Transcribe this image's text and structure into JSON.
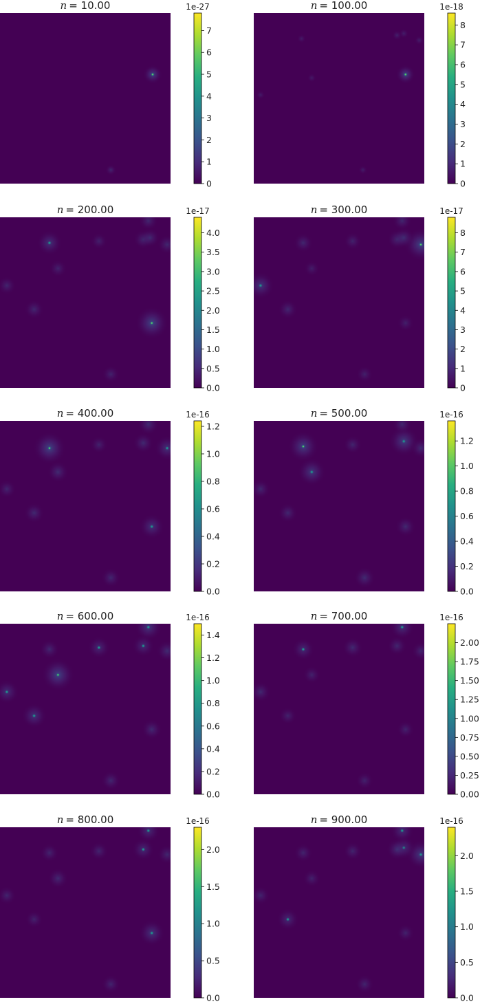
{
  "figure": {
    "colormap": "viridis",
    "colormap_stops": [
      "#440154",
      "#472c7a",
      "#3b528b",
      "#2c728e",
      "#21918c",
      "#28ae80",
      "#5ec962",
      "#addc30",
      "#fde725"
    ],
    "background": "#ffffff"
  },
  "chart_data": [
    {
      "type": "heatmap",
      "title_var": "n",
      "title_value": "= 10.00",
      "colorbar_exponent": "1e-27",
      "colorbar_ticks": [
        "0",
        "1",
        "2",
        "3",
        "4",
        "5",
        "6",
        "7"
      ],
      "colorbar_tick_values": [
        0,
        1,
        2,
        3,
        4,
        5,
        6,
        7
      ],
      "clim": [
        0,
        7.8
      ],
      "axes_ticks_visible": false,
      "sources": [
        {
          "x": 0.895,
          "y": 0.36,
          "intensity": 1.0
        },
        {
          "x": 0.65,
          "y": 0.92,
          "intensity": 0.25
        }
      ]
    },
    {
      "type": "heatmap",
      "title_var": "n",
      "title_value": "= 100.00",
      "colorbar_exponent": "1e-18",
      "colorbar_ticks": [
        "0",
        "1",
        "2",
        "3",
        "4",
        "5",
        "6",
        "7",
        "8"
      ],
      "colorbar_tick_values": [
        0,
        1,
        2,
        3,
        4,
        5,
        6,
        7,
        8
      ],
      "clim": [
        0,
        8.6
      ],
      "axes_ticks_visible": false,
      "sources": [
        {
          "x": 0.89,
          "y": 0.36,
          "intensity": 1.0
        },
        {
          "x": 0.84,
          "y": 0.13,
          "intensity": 0.15
        },
        {
          "x": 0.88,
          "y": 0.12,
          "intensity": 0.12
        },
        {
          "x": 0.97,
          "y": 0.16,
          "intensity": 0.1
        },
        {
          "x": 0.28,
          "y": 0.15,
          "intensity": 0.06
        },
        {
          "x": 0.34,
          "y": 0.38,
          "intensity": 0.05
        },
        {
          "x": 0.04,
          "y": 0.48,
          "intensity": 0.05
        },
        {
          "x": 0.64,
          "y": 0.92,
          "intensity": 0.06
        }
      ]
    },
    {
      "type": "heatmap",
      "title_var": "n",
      "title_value": "= 200.00",
      "colorbar_exponent": "1e-17",
      "colorbar_ticks": [
        "0.0",
        "0.5",
        "1.0",
        "1.5",
        "2.0",
        "2.5",
        "3.0",
        "3.5",
        "4.0"
      ],
      "colorbar_tick_values": [
        0,
        0.5,
        1,
        1.5,
        2,
        2.5,
        3,
        3.5,
        4
      ],
      "clim": [
        0,
        4.4
      ],
      "axes_ticks_visible": false,
      "sources": [
        {
          "x": 0.89,
          "y": 0.62,
          "intensity": 1.0
        },
        {
          "x": 0.29,
          "y": 0.15,
          "intensity": 0.6
        },
        {
          "x": 0.87,
          "y": 0.02,
          "intensity": 0.3
        },
        {
          "x": 0.84,
          "y": 0.13,
          "intensity": 0.3
        },
        {
          "x": 0.88,
          "y": 0.12,
          "intensity": 0.3
        },
        {
          "x": 0.98,
          "y": 0.16,
          "intensity": 0.3
        },
        {
          "x": 0.58,
          "y": 0.14,
          "intensity": 0.15
        },
        {
          "x": 0.34,
          "y": 0.3,
          "intensity": 0.2
        },
        {
          "x": 0.04,
          "y": 0.4,
          "intensity": 0.25
        },
        {
          "x": 0.2,
          "y": 0.54,
          "intensity": 0.3
        },
        {
          "x": 0.65,
          "y": 0.92,
          "intensity": 0.2
        }
      ]
    },
    {
      "type": "heatmap",
      "title_var": "n",
      "title_value": "= 300.00",
      "colorbar_exponent": "1e-17",
      "colorbar_ticks": [
        "0",
        "1",
        "2",
        "3",
        "4",
        "5",
        "6",
        "7",
        "8"
      ],
      "colorbar_tick_values": [
        0,
        1,
        2,
        3,
        4,
        5,
        6,
        7,
        8
      ],
      "clim": [
        0,
        8.8
      ],
      "axes_ticks_visible": false,
      "sources": [
        {
          "x": 0.98,
          "y": 0.16,
          "intensity": 1.0
        },
        {
          "x": 0.04,
          "y": 0.4,
          "intensity": 0.7
        },
        {
          "x": 0.87,
          "y": 0.02,
          "intensity": 0.3
        },
        {
          "x": 0.84,
          "y": 0.13,
          "intensity": 0.3
        },
        {
          "x": 0.88,
          "y": 0.12,
          "intensity": 0.4
        },
        {
          "x": 0.29,
          "y": 0.15,
          "intensity": 0.3
        },
        {
          "x": 0.58,
          "y": 0.14,
          "intensity": 0.2
        },
        {
          "x": 0.34,
          "y": 0.3,
          "intensity": 0.1
        },
        {
          "x": 0.2,
          "y": 0.54,
          "intensity": 0.3
        },
        {
          "x": 0.89,
          "y": 0.62,
          "intensity": 0.15
        },
        {
          "x": 0.65,
          "y": 0.92,
          "intensity": 0.15
        }
      ]
    },
    {
      "type": "heatmap",
      "title_var": "n",
      "title_value": "= 400.00",
      "colorbar_exponent": "1e-16",
      "colorbar_ticks": [
        "0.0",
        "0.2",
        "0.4",
        "0.6",
        "0.8",
        "1.0",
        "1.2"
      ],
      "colorbar_tick_values": [
        0,
        0.2,
        0.4,
        0.6,
        0.8,
        1.0,
        1.2
      ],
      "clim": [
        0,
        1.24
      ],
      "axes_ticks_visible": false,
      "sources": [
        {
          "x": 0.29,
          "y": 0.16,
          "intensity": 1.0
        },
        {
          "x": 0.87,
          "y": 0.02,
          "intensity": 0.4
        },
        {
          "x": 0.84,
          "y": 0.13,
          "intensity": 0.35
        },
        {
          "x": 0.98,
          "y": 0.16,
          "intensity": 0.6
        },
        {
          "x": 0.58,
          "y": 0.14,
          "intensity": 0.2
        },
        {
          "x": 0.34,
          "y": 0.3,
          "intensity": 0.4
        },
        {
          "x": 0.04,
          "y": 0.4,
          "intensity": 0.25
        },
        {
          "x": 0.2,
          "y": 0.54,
          "intensity": 0.35
        },
        {
          "x": 0.89,
          "y": 0.62,
          "intensity": 0.6
        },
        {
          "x": 0.65,
          "y": 0.92,
          "intensity": 0.3
        }
      ]
    },
    {
      "type": "heatmap",
      "title_var": "n",
      "title_value": "= 500.00",
      "colorbar_exponent": "1e-16",
      "colorbar_ticks": [
        "0.0",
        "0.2",
        "0.4",
        "0.6",
        "0.8",
        "1.0",
        "1.2"
      ],
      "colorbar_tick_values": [
        0,
        0.2,
        0.4,
        0.6,
        0.8,
        1.0,
        1.2
      ],
      "clim": [
        0,
        1.36
      ],
      "axes_ticks_visible": false,
      "sources": [
        {
          "x": 0.88,
          "y": 0.12,
          "intensity": 0.85
        },
        {
          "x": 0.29,
          "y": 0.15,
          "intensity": 0.9
        },
        {
          "x": 0.34,
          "y": 0.3,
          "intensity": 0.75
        },
        {
          "x": 0.87,
          "y": 0.02,
          "intensity": 0.3
        },
        {
          "x": 0.98,
          "y": 0.16,
          "intensity": 0.35
        },
        {
          "x": 0.58,
          "y": 0.14,
          "intensity": 0.25
        },
        {
          "x": 0.04,
          "y": 0.4,
          "intensity": 0.3
        },
        {
          "x": 0.2,
          "y": 0.54,
          "intensity": 0.3
        },
        {
          "x": 0.89,
          "y": 0.62,
          "intensity": 0.35
        },
        {
          "x": 0.65,
          "y": 0.92,
          "intensity": 0.4
        }
      ]
    },
    {
      "type": "heatmap",
      "title_var": "n",
      "title_value": "= 600.00",
      "colorbar_exponent": "1e-16",
      "colorbar_ticks": [
        "0.0",
        "0.2",
        "0.4",
        "0.6",
        "0.8",
        "1.0",
        "1.2",
        "1.4"
      ],
      "colorbar_tick_values": [
        0,
        0.2,
        0.4,
        0.6,
        0.8,
        1.0,
        1.2,
        1.4
      ],
      "clim": [
        0,
        1.5
      ],
      "axes_ticks_visible": false,
      "sources": [
        {
          "x": 0.34,
          "y": 0.3,
          "intensity": 1.0
        },
        {
          "x": 0.87,
          "y": 0.02,
          "intensity": 0.7
        },
        {
          "x": 0.84,
          "y": 0.13,
          "intensity": 0.45
        },
        {
          "x": 0.98,
          "y": 0.16,
          "intensity": 0.4
        },
        {
          "x": 0.58,
          "y": 0.14,
          "intensity": 0.45
        },
        {
          "x": 0.29,
          "y": 0.15,
          "intensity": 0.3
        },
        {
          "x": 0.04,
          "y": 0.4,
          "intensity": 0.55
        },
        {
          "x": 0.2,
          "y": 0.54,
          "intensity": 0.6
        },
        {
          "x": 0.89,
          "y": 0.62,
          "intensity": 0.35
        },
        {
          "x": 0.65,
          "y": 0.92,
          "intensity": 0.3
        }
      ]
    },
    {
      "type": "heatmap",
      "title_var": "n",
      "title_value": "= 700.00",
      "colorbar_exponent": "1e-16",
      "colorbar_ticks": [
        "0.00",
        "0.25",
        "0.50",
        "0.75",
        "1.00",
        "1.25",
        "1.50",
        "1.75",
        "2.00"
      ],
      "colorbar_tick_values": [
        0,
        0.25,
        0.5,
        0.75,
        1.0,
        1.25,
        1.5,
        1.75,
        2.0
      ],
      "clim": [
        0,
        2.25
      ],
      "axes_ticks_visible": false,
      "sources": [
        {
          "x": 0.87,
          "y": 0.02,
          "intensity": 0.55
        },
        {
          "x": 0.29,
          "y": 0.15,
          "intensity": 0.45
        },
        {
          "x": 0.58,
          "y": 0.14,
          "intensity": 0.35
        },
        {
          "x": 0.84,
          "y": 0.13,
          "intensity": 0.3
        },
        {
          "x": 0.98,
          "y": 0.16,
          "intensity": 0.25
        },
        {
          "x": 0.34,
          "y": 0.3,
          "intensity": 0.2
        },
        {
          "x": 0.04,
          "y": 0.4,
          "intensity": 0.35
        },
        {
          "x": 0.2,
          "y": 0.54,
          "intensity": 0.2
        },
        {
          "x": 0.89,
          "y": 0.62,
          "intensity": 0.2
        },
        {
          "x": 0.65,
          "y": 0.92,
          "intensity": 0.2
        }
      ]
    },
    {
      "type": "heatmap",
      "title_var": "n",
      "title_value": "= 800.00",
      "colorbar_exponent": "1e-16",
      "colorbar_ticks": [
        "0.0",
        "0.5",
        "1.0",
        "1.5",
        "2.0"
      ],
      "colorbar_tick_values": [
        0,
        0.5,
        1.0,
        1.5,
        2.0
      ],
      "clim": [
        0,
        2.3
      ],
      "axes_ticks_visible": false,
      "sources": [
        {
          "x": 0.89,
          "y": 0.62,
          "intensity": 0.65
        },
        {
          "x": 0.87,
          "y": 0.02,
          "intensity": 0.5
        },
        {
          "x": 0.84,
          "y": 0.13,
          "intensity": 0.45
        },
        {
          "x": 0.98,
          "y": 0.16,
          "intensity": 0.3
        },
        {
          "x": 0.58,
          "y": 0.14,
          "intensity": 0.25
        },
        {
          "x": 0.29,
          "y": 0.15,
          "intensity": 0.25
        },
        {
          "x": 0.34,
          "y": 0.3,
          "intensity": 0.35
        },
        {
          "x": 0.04,
          "y": 0.4,
          "intensity": 0.25
        },
        {
          "x": 0.2,
          "y": 0.54,
          "intensity": 0.2
        },
        {
          "x": 0.65,
          "y": 0.92,
          "intensity": 0.25
        }
      ]
    },
    {
      "type": "heatmap",
      "title_var": "n",
      "title_value": "= 900.00",
      "colorbar_exponent": "1e-16",
      "colorbar_ticks": [
        "0.0",
        "0.5",
        "1.0",
        "1.5",
        "2.0"
      ],
      "colorbar_tick_values": [
        0,
        0.5,
        1.0,
        1.5,
        2.0
      ],
      "clim": [
        0,
        2.4
      ],
      "axes_ticks_visible": false,
      "sources": [
        {
          "x": 0.98,
          "y": 0.16,
          "intensity": 0.8
        },
        {
          "x": 0.87,
          "y": 0.02,
          "intensity": 0.5
        },
        {
          "x": 0.88,
          "y": 0.12,
          "intensity": 0.5
        },
        {
          "x": 0.84,
          "y": 0.13,
          "intensity": 0.4
        },
        {
          "x": 0.58,
          "y": 0.14,
          "intensity": 0.25
        },
        {
          "x": 0.29,
          "y": 0.15,
          "intensity": 0.25
        },
        {
          "x": 0.34,
          "y": 0.3,
          "intensity": 0.2
        },
        {
          "x": 0.04,
          "y": 0.4,
          "intensity": 0.25
        },
        {
          "x": 0.2,
          "y": 0.54,
          "intensity": 0.45
        },
        {
          "x": 0.89,
          "y": 0.62,
          "intensity": 0.2
        },
        {
          "x": 0.65,
          "y": 0.92,
          "intensity": 0.25
        }
      ]
    }
  ]
}
